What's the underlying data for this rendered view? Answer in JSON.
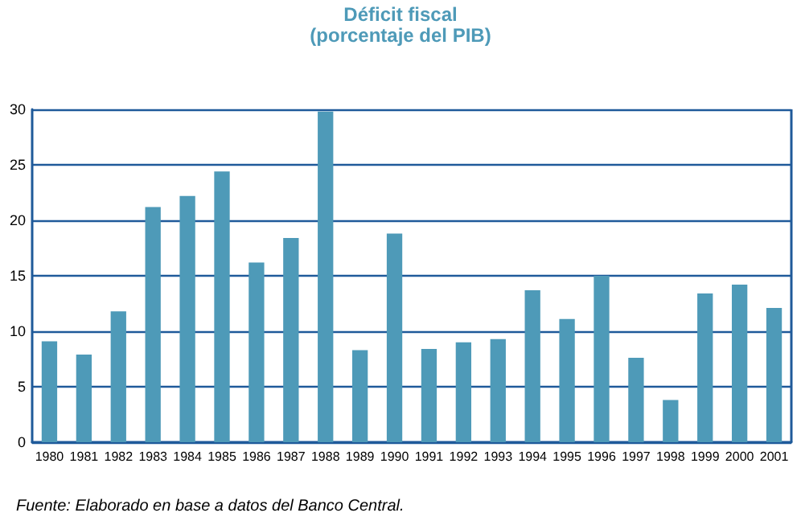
{
  "chart_data": {
    "type": "bar",
    "title": "Déficit fiscal",
    "subtitle": "(porcentaje del PIB)",
    "categories": [
      "1980",
      "1981",
      "1982",
      "1983",
      "1984",
      "1985",
      "1986",
      "1987",
      "1988",
      "1989",
      "1990",
      "1991",
      "1992",
      "1993",
      "1994",
      "1995",
      "1996",
      "1997",
      "1998",
      "1999",
      "2000",
      "2001"
    ],
    "values": [
      9.1,
      7.9,
      11.8,
      21.2,
      22.2,
      24.4,
      16.2,
      18.4,
      29.8,
      8.3,
      18.8,
      8.4,
      9.0,
      9.3,
      13.7,
      11.1,
      15.0,
      7.6,
      3.8,
      13.4,
      14.2,
      12.1
    ],
    "color": "#4e9ab8",
    "ylim": [
      0,
      30
    ],
    "yticks": [
      0,
      5,
      10,
      15,
      20,
      25,
      30
    ],
    "grid": "y",
    "annotations": [
      "Fuente: Elaborado en base a datos del Banco Central."
    ]
  }
}
